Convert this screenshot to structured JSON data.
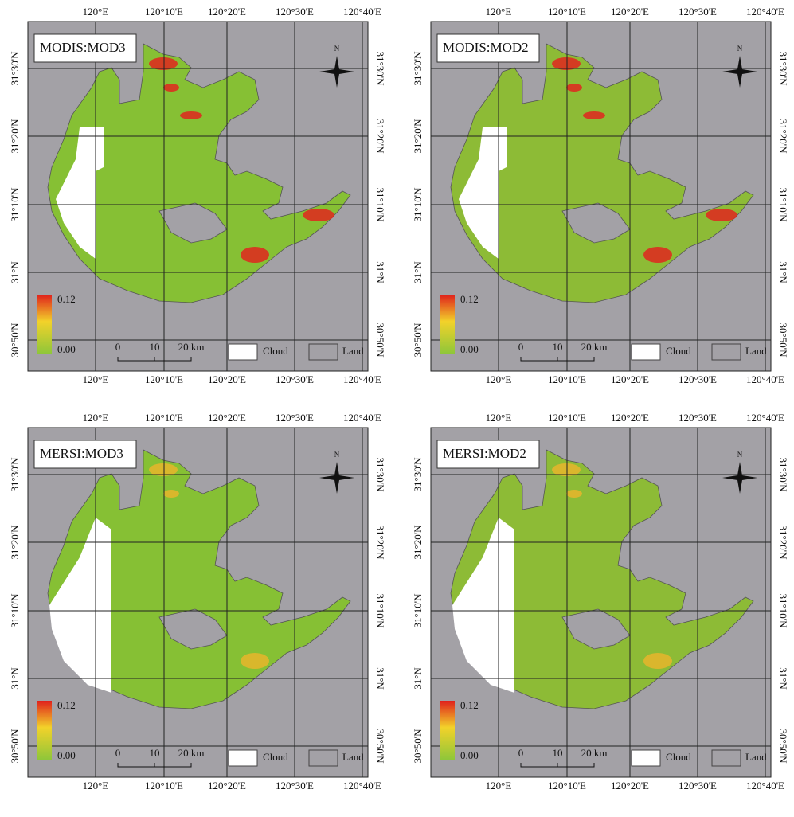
{
  "panels": [
    {
      "title": "MODIS:MOD3"
    },
    {
      "title": "MODIS:MOD2"
    },
    {
      "title": "MERSI:MOD3"
    },
    {
      "title": "MERSI:MOD2"
    }
  ],
  "axes": {
    "lon_labels": [
      "120°E",
      "120°10'E",
      "120°20'E",
      "120°30'E",
      "120°40'E"
    ],
    "lat_labels": [
      "31°30'N",
      "31°20'N",
      "31°10'N",
      "31°N",
      "30°50'N"
    ]
  },
  "legend": {
    "max": "0.12",
    "min": "0.00",
    "scale": [
      "0",
      "10",
      "20 km"
    ],
    "cloud": "Cloud",
    "land": "Land"
  },
  "north": "N"
}
